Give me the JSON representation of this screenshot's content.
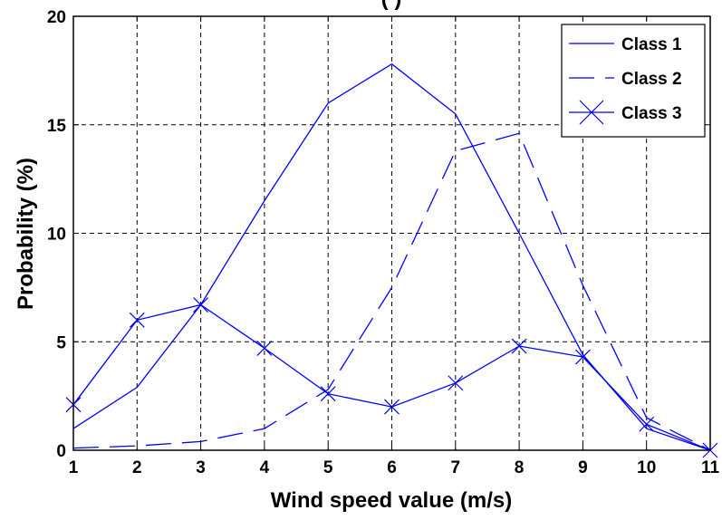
{
  "chart_data": {
    "type": "line",
    "title": "(                                                    )",
    "xlabel": "Wind speed value (m/s)",
    "ylabel": "Probability (%)",
    "x": [
      1,
      2,
      3,
      4,
      5,
      6,
      7,
      8,
      9,
      10,
      11
    ],
    "xlim": [
      1,
      11
    ],
    "ylim": [
      0,
      20
    ],
    "xticks": [
      1,
      2,
      3,
      4,
      5,
      6,
      7,
      8,
      9,
      10,
      11
    ],
    "yticks": [
      0,
      5,
      10,
      15,
      20
    ],
    "grid": true,
    "legend_position": "top-right",
    "series": [
      {
        "name": "Class 1",
        "style": "solid",
        "marker": "none",
        "color": "#0000ff",
        "values": [
          1.0,
          2.9,
          6.7,
          11.5,
          16.0,
          17.8,
          15.5,
          10.0,
          4.4,
          1.0,
          0.0
        ]
      },
      {
        "name": "Class 2",
        "style": "dashed",
        "marker": "none",
        "color": "#0000ff",
        "values": [
          0.1,
          0.2,
          0.4,
          1.0,
          2.8,
          7.5,
          13.8,
          14.6,
          7.6,
          1.5,
          0.0
        ]
      },
      {
        "name": "Class 3",
        "style": "solid",
        "marker": "x",
        "color": "#0000ff",
        "values": [
          2.1,
          6.0,
          6.7,
          4.7,
          2.6,
          2.0,
          3.1,
          4.8,
          4.3,
          1.2,
          0.0
        ]
      }
    ]
  }
}
